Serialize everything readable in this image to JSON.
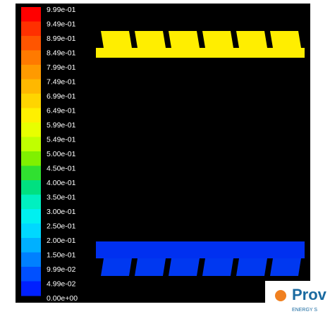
{
  "colorbar": {
    "labels": [
      "9.99e-01",
      "9.49e-01",
      "8.99e-01",
      "8.49e-01",
      "7.99e-01",
      "7.49e-01",
      "6.99e-01",
      "6.49e-01",
      "5.99e-01",
      "5.49e-01",
      "5.00e-01",
      "4.50e-01",
      "4.00e-01",
      "3.50e-01",
      "3.00e-01",
      "2.50e-01",
      "2.00e-01",
      "1.50e-01",
      "9.99e-02",
      "4.99e-02",
      "0.00e+00"
    ],
    "colors": [
      "#ff0000",
      "#ff3000",
      "#ff5500",
      "#ff7a00",
      "#ff9a00",
      "#ffb800",
      "#ffd500",
      "#fff000",
      "#e8ff00",
      "#c0ff00",
      "#80f000",
      "#30e030",
      "#00e080",
      "#00f0c0",
      "#00f0f0",
      "#00d8ff",
      "#00b0ff",
      "#0080ff",
      "#0050ff",
      "#0020ff"
    ]
  },
  "logo": {
    "name": "Prov",
    "tagline": "ENERGY S"
  }
}
